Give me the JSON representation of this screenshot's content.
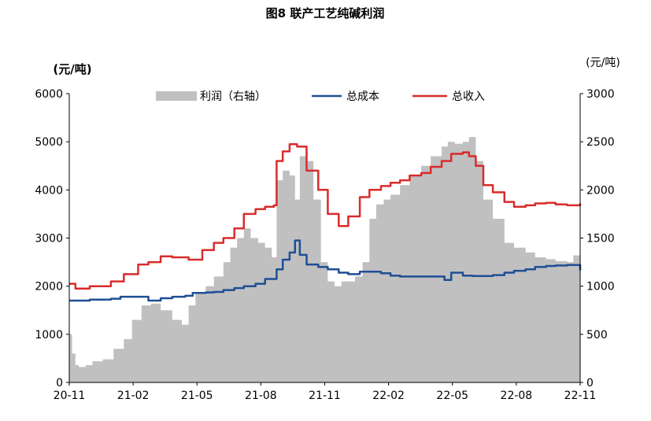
{
  "chart_data": {
    "type": "line",
    "title": "图8 联产工艺纯碱利润",
    "ylabel_left": "(元/吨)",
    "ylabel_right": "(元/吨)",
    "xlabel": "",
    "x_ticks": [
      "20-11",
      "21-02",
      "21-05",
      "21-08",
      "21-11",
      "22-02",
      "22-05",
      "22-08",
      "22-11"
    ],
    "x_start": "2020-11-01",
    "x_end": "2022-11-20",
    "ylim_left": [
      0,
      6000
    ],
    "ylim_right": [
      0,
      3000
    ],
    "yticks_left": [
      "0",
      "1000",
      "2000",
      "3000",
      "4000",
      "5000",
      "6000"
    ],
    "yticks_right": [
      "0",
      "500",
      "1000",
      "1500",
      "2000",
      "2500",
      "3000"
    ],
    "grid": false,
    "legend_position": "top-center",
    "series": [
      {
        "name": "利润（右轴）",
        "type": "area",
        "axis": "right",
        "color": "#c0c0c0",
        "x": [
          "2020-11-01",
          "2020-11-05",
          "2020-11-10",
          "2020-11-15",
          "2020-11-25",
          "2020-12-05",
          "2020-12-20",
          "2021-01-05",
          "2021-01-20",
          "2021-02-01",
          "2021-02-15",
          "2021-03-01",
          "2021-03-15",
          "2021-04-01",
          "2021-04-15",
          "2021-04-25",
          "2021-05-05",
          "2021-05-20",
          "2021-06-01",
          "2021-06-15",
          "2021-06-25",
          "2021-07-05",
          "2021-07-15",
          "2021-07-25",
          "2021-08-05",
          "2021-08-15",
          "2021-08-25",
          "2021-09-01",
          "2021-09-10",
          "2021-09-20",
          "2021-09-28",
          "2021-10-05",
          "2021-10-15",
          "2021-10-25",
          "2021-11-05",
          "2021-11-15",
          "2021-11-25",
          "2021-12-05",
          "2021-12-15",
          "2021-12-25",
          "2022-01-05",
          "2022-01-15",
          "2022-01-25",
          "2022-02-05",
          "2022-02-15",
          "2022-03-01",
          "2022-03-15",
          "2022-04-01",
          "2022-04-15",
          "2022-05-01",
          "2022-05-10",
          "2022-05-20",
          "2022-06-01",
          "2022-06-10",
          "2022-06-20",
          "2022-07-01",
          "2022-07-15",
          "2022-08-01",
          "2022-08-15",
          "2022-09-01",
          "2022-09-15",
          "2022-10-01",
          "2022-10-15",
          "2022-11-01",
          "2022-11-10",
          "2022-11-20"
        ],
        "values": [
          500,
          300,
          180,
          160,
          180,
          220,
          240,
          350,
          450,
          650,
          800,
          820,
          750,
          650,
          600,
          800,
          920,
          1000,
          1100,
          1250,
          1400,
          1500,
          1600,
          1500,
          1450,
          1400,
          1300,
          2100,
          2200,
          2150,
          1900,
          2350,
          2300,
          1900,
          1250,
          1050,
          1000,
          1050,
          1050,
          1100,
          1250,
          1700,
          1850,
          1900,
          1950,
          2050,
          2150,
          2250,
          2350,
          2450,
          2500,
          2480,
          2500,
          2550,
          2300,
          1900,
          1700,
          1450,
          1400,
          1350,
          1300,
          1280,
          1260,
          1250,
          1320,
          1380
        ]
      },
      {
        "name": "总成本",
        "type": "line",
        "axis": "left",
        "color": "#1f4e95",
        "x": [
          "2020-11-01",
          "2020-12-01",
          "2021-01-01",
          "2021-01-15",
          "2021-02-10",
          "2021-02-25",
          "2021-03-15",
          "2021-04-01",
          "2021-04-20",
          "2021-05-01",
          "2021-05-20",
          "2021-06-01",
          "2021-06-15",
          "2021-07-01",
          "2021-07-15",
          "2021-08-01",
          "2021-08-15",
          "2021-09-01",
          "2021-09-10",
          "2021-09-20",
          "2021-09-28",
          "2021-10-05",
          "2021-10-15",
          "2021-11-01",
          "2021-11-15",
          "2021-12-01",
          "2021-12-15",
          "2022-01-01",
          "2022-01-15",
          "2022-02-01",
          "2022-02-15",
          "2022-03-01",
          "2022-03-15",
          "2022-04-01",
          "2022-04-15",
          "2022-05-01",
          "2022-05-05",
          "2022-05-15",
          "2022-06-01",
          "2022-06-15",
          "2022-07-01",
          "2022-07-15",
          "2022-08-01",
          "2022-08-15",
          "2022-09-01",
          "2022-09-15",
          "2022-10-01",
          "2022-10-15",
          "2022-11-01",
          "2022-11-20"
        ],
        "values": [
          1700,
          1720,
          1740,
          1780,
          1780,
          1700,
          1750,
          1780,
          1800,
          1860,
          1870,
          1880,
          1920,
          1960,
          2000,
          2050,
          2150,
          2350,
          2550,
          2700,
          2950,
          2650,
          2450,
          2400,
          2350,
          2280,
          2250,
          2300,
          2300,
          2270,
          2220,
          2200,
          2200,
          2200,
          2200,
          2200,
          2130,
          2280,
          2220,
          2210,
          2210,
          2230,
          2280,
          2320,
          2350,
          2400,
          2420,
          2430,
          2440,
          2330
        ]
      },
      {
        "name": "总收入",
        "type": "line",
        "axis": "left",
        "color": "#d92b2b",
        "x": [
          "2020-11-01",
          "2020-11-10",
          "2020-12-01",
          "2021-01-01",
          "2021-01-20",
          "2021-02-10",
          "2021-02-25",
          "2021-03-15",
          "2021-04-01",
          "2021-04-25",
          "2021-05-15",
          "2021-06-01",
          "2021-06-15",
          "2021-07-01",
          "2021-07-15",
          "2021-08-01",
          "2021-08-15",
          "2021-08-28",
          "2021-09-01",
          "2021-09-10",
          "2021-09-20",
          "2021-10-01",
          "2021-10-15",
          "2021-11-01",
          "2021-11-15",
          "2021-12-01",
          "2021-12-15",
          "2022-01-01",
          "2022-01-15",
          "2022-02-01",
          "2022-02-15",
          "2022-03-01",
          "2022-03-15",
          "2022-04-01",
          "2022-04-15",
          "2022-05-01",
          "2022-05-15",
          "2022-06-01",
          "2022-06-10",
          "2022-06-20",
          "2022-07-01",
          "2022-07-15",
          "2022-08-01",
          "2022-08-15",
          "2022-09-01",
          "2022-09-15",
          "2022-10-01",
          "2022-10-15",
          "2022-11-01",
          "2022-11-20"
        ],
        "values": [
          2050,
          1950,
          2000,
          2100,
          2250,
          2450,
          2500,
          2620,
          2600,
          2550,
          2750,
          2900,
          3000,
          3200,
          3500,
          3600,
          3650,
          3680,
          4600,
          4800,
          4950,
          4900,
          4400,
          4000,
          3500,
          3250,
          3450,
          3850,
          4000,
          4080,
          4150,
          4200,
          4300,
          4350,
          4480,
          4600,
          4750,
          4780,
          4700,
          4500,
          4100,
          3950,
          3750,
          3650,
          3680,
          3720,
          3730,
          3700,
          3680,
          3720
        ]
      }
    ]
  }
}
